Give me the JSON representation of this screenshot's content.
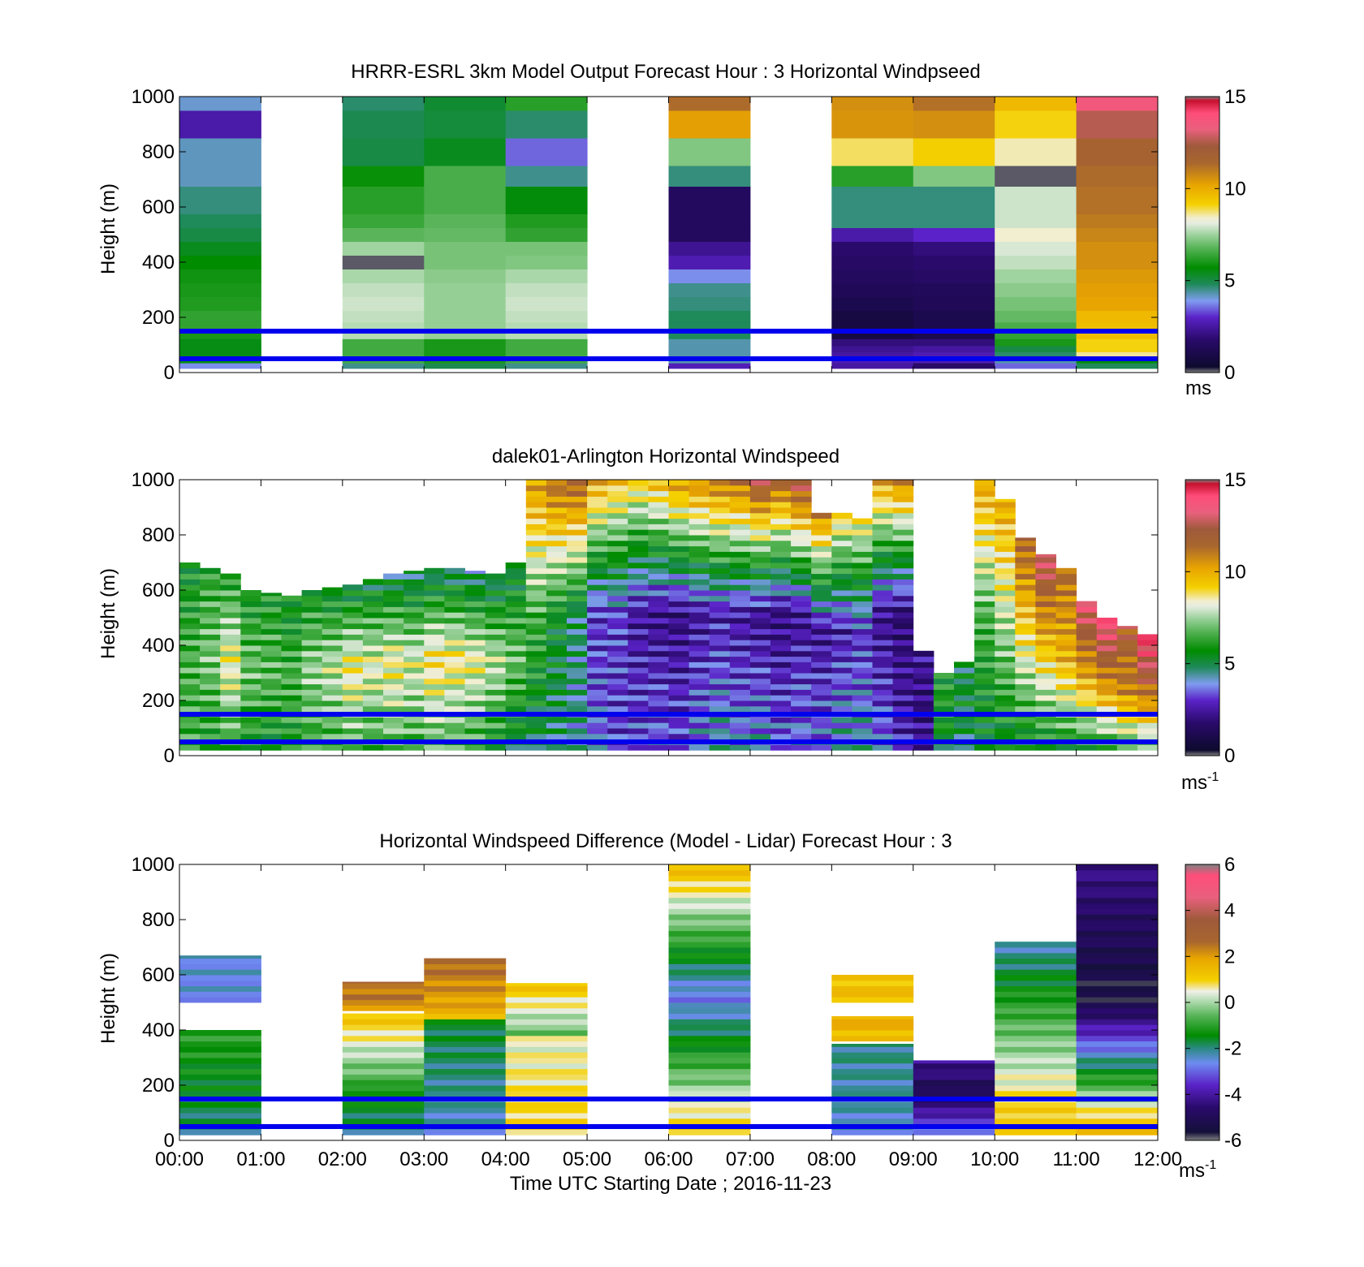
{
  "figure": {
    "xlabel": "Time UTC  Starting Date ; 2016-11-23",
    "x_tick_labels": [
      "00:00",
      "01:00",
      "02:00",
      "03:00",
      "04:00",
      "05:00",
      "06:00",
      "07:00",
      "08:00",
      "09:00",
      "10:00",
      "11:00",
      "12:00"
    ],
    "reference_lines_height_m": [
      150,
      50
    ],
    "reference_line_color": "#0000ee"
  },
  "colormaps": {
    "speed_stops": [
      [
        0.0,
        "#808080"
      ],
      [
        0.02,
        "#0d0a2e"
      ],
      [
        0.12,
        "#2a0a6b"
      ],
      [
        0.2,
        "#5a22c8"
      ],
      [
        0.26,
        "#7f9cf0"
      ],
      [
        0.32,
        "#1f8a5a"
      ],
      [
        0.38,
        "#008c00"
      ],
      [
        0.45,
        "#55b355"
      ],
      [
        0.5,
        "#9fd39f"
      ],
      [
        0.54,
        "#e4ecdf"
      ],
      [
        0.56,
        "#f2eed0"
      ],
      [
        0.61,
        "#f4d000"
      ],
      [
        0.68,
        "#e8a400"
      ],
      [
        0.76,
        "#a8662f"
      ],
      [
        0.82,
        "#9e5a3a"
      ],
      [
        0.88,
        "#e8607c"
      ],
      [
        0.94,
        "#ff4d7a"
      ],
      [
        0.985,
        "#c8102e"
      ],
      [
        1.0,
        "#808080"
      ]
    ],
    "diff_stops": [
      [
        0.0,
        "#808080"
      ],
      [
        0.03,
        "#14103a"
      ],
      [
        0.12,
        "#2a0a6b"
      ],
      [
        0.2,
        "#5a22c8"
      ],
      [
        0.28,
        "#6e8cf0"
      ],
      [
        0.33,
        "#2e8a8a"
      ],
      [
        0.38,
        "#008c00"
      ],
      [
        0.45,
        "#55b355"
      ],
      [
        0.5,
        "#a8d8a8"
      ],
      [
        0.54,
        "#f0f0e8"
      ],
      [
        0.58,
        "#f4d000"
      ],
      [
        0.66,
        "#e8a400"
      ],
      [
        0.72,
        "#a8662f"
      ],
      [
        0.8,
        "#9e5a3a"
      ],
      [
        0.88,
        "#e8607c"
      ],
      [
        0.96,
        "#ff4d7a"
      ],
      [
        1.0,
        "#808080"
      ]
    ]
  },
  "chart_data": [
    {
      "type": "heatmap",
      "title": "HRRR-ESRL 3km Model Output   Forecast Hour : 3 Horizontal Windpseed",
      "xlabel": "",
      "ylabel": "Height (m)",
      "xlim": [
        0,
        12
      ],
      "ylim": [
        0,
        1000
      ],
      "y_ticks": [
        0,
        200,
        400,
        600,
        800,
        1000
      ],
      "colorbar": {
        "range": [
          0,
          15
        ],
        "ticks": [
          0,
          5,
          10,
          15
        ],
        "unit": "ms",
        "unit_sup": "",
        "colormap": "speed"
      },
      "height_levels_m": [
        25,
        45,
        65,
        85,
        110,
        135,
        165,
        200,
        250,
        300,
        350,
        400,
        450,
        500,
        550,
        600,
        650,
        700,
        800,
        900,
        1000
      ],
      "columns": [
        {
          "time_h": [
            0,
            1
          ],
          "values": [
            3.8,
            5.5,
            5.5,
            5.5,
            5.5,
            6.0,
            6.3,
            6.3,
            6.1,
            6.0,
            5.9,
            5.7,
            5.4,
            5.0,
            4.8,
            4.6,
            4.6,
            4.2,
            4.2,
            2.6,
            4.1
          ]
        },
        null,
        {
          "time_h": [
            2,
            3
          ],
          "values": [
            4.5,
            6.5,
            6.5,
            6.5,
            6.5,
            7.7,
            7.7,
            7.8,
            7.9,
            7.8,
            7.6,
            0.1,
            7.5,
            6.8,
            6.4,
            6.2,
            6.2,
            5.8,
            5.0,
            4.9,
            4.7
          ]
        },
        {
          "time_h": [
            3,
            4
          ],
          "values": [
            4.9,
            6.0,
            6.0,
            6.0,
            6.0,
            7.4,
            7.4,
            7.4,
            7.4,
            7.4,
            7.3,
            7.1,
            7.1,
            6.9,
            6.8,
            6.6,
            6.6,
            6.6,
            5.4,
            5.1,
            5.2
          ]
        },
        {
          "time_h": [
            4,
            5
          ],
          "values": [
            4.5,
            6.5,
            6.5,
            6.5,
            6.5,
            7.7,
            7.7,
            7.8,
            7.9,
            7.8,
            7.6,
            7.2,
            7.1,
            6.3,
            6.1,
            5.6,
            5.6,
            4.5,
            3.5,
            4.7,
            6.2
          ]
        },
        null,
        {
          "time_h": [
            6,
            7
          ],
          "values": [
            2.8,
            4.3,
            4.3,
            4.3,
            4.3,
            4.8,
            4.8,
            4.8,
            4.6,
            4.5,
            3.8,
            2.7,
            2.3,
            1.5,
            1.5,
            1.5,
            1.5,
            4.6,
            7.2,
            10.3,
            11.3
          ]
        },
        null,
        {
          "time_h": [
            8,
            9
          ],
          "values": [
            2.5,
            2.7,
            2.5,
            2.3,
            2.0,
            0.8,
            0.8,
            0.8,
            1.1,
            1.3,
            1.5,
            1.6,
            1.8,
            2.6,
            4.6,
            4.6,
            4.6,
            6.2,
            8.8,
            10.5,
            10.6
          ]
        },
        {
          "time_h": [
            9,
            10
          ],
          "values": [
            1.7,
            2.7,
            2.7,
            2.5,
            2.0,
            1.1,
            1.1,
            1.1,
            1.3,
            1.4,
            1.6,
            1.8,
            2.0,
            3.0,
            4.6,
            4.6,
            4.6,
            7.2,
            9.2,
            10.6,
            11.2
          ]
        },
        {
          "time_h": [
            10,
            11
          ],
          "values": [
            3.5,
            4.3,
            4.7,
            5.0,
            6.0,
            6.3,
            6.6,
            6.9,
            7.1,
            7.3,
            7.5,
            7.8,
            8.0,
            8.4,
            7.9,
            7.9,
            7.9,
            0.1,
            8.5,
            9.1,
            9.7
          ]
        },
        {
          "time_h": [
            11,
            12
          ],
          "values": [
            4.8,
            5.6,
            8.6,
            9.1,
            9.1,
            9.6,
            9.6,
            9.7,
            10.2,
            10.3,
            10.4,
            10.6,
            10.6,
            10.8,
            11.0,
            11.2,
            11.2,
            11.3,
            11.6,
            12.6,
            13.6
          ]
        }
      ]
    },
    {
      "type": "heatmap",
      "title": "dalek01-Arlington  Horizontal Windspeed",
      "xlabel": "",
      "ylabel": "Height (m)",
      "xlim": [
        0,
        12
      ],
      "ylim": [
        0,
        1000
      ],
      "y_ticks": [
        0,
        200,
        400,
        600,
        800,
        1000
      ],
      "colorbar": {
        "range": [
          0,
          15
        ],
        "ticks": [
          0,
          5,
          10,
          15
        ],
        "unit": "ms",
        "unit_sup": "-1",
        "colormap": "speed"
      },
      "profile_breaks_h": [
        0,
        0.25,
        0.5,
        0.75,
        1,
        1.25,
        1.5,
        1.75,
        2,
        2.25,
        2.5,
        2.75,
        3,
        3.25,
        3.5,
        3.75,
        4,
        4.25,
        4.5,
        4.75,
        5,
        5.25,
        5.5,
        5.75,
        6,
        6.25,
        6.5,
        6.75,
        7,
        7.25,
        7.5,
        7.75,
        8,
        8.25,
        8.5,
        8.75,
        9,
        9.25,
        9.5,
        9.75,
        10,
        10.25,
        10.5,
        10.75,
        11,
        11.25,
        11.5,
        11.75,
        12
      ],
      "profiles": [
        {
          "top_m": 700,
          "bottom": 6.3,
          "mid": 6.6,
          "top": 5.6
        },
        {
          "top_m": 680,
          "bottom": 6.0,
          "mid": 7.1,
          "top": 6.2
        },
        {
          "top_m": 660,
          "bottom": 6.4,
          "mid": 8.4,
          "top": 5.9
        },
        {
          "top_m": 600,
          "bottom": 6.0,
          "mid": 7.0,
          "top": 5.7
        },
        {
          "top_m": 590,
          "bottom": 5.6,
          "mid": 6.8,
          "top": 5.9
        },
        {
          "top_m": 580,
          "bottom": 5.8,
          "mid": 6.6,
          "top": 5.5
        },
        {
          "top_m": 600,
          "bottom": 6.0,
          "mid": 7.4,
          "top": 5.7
        },
        {
          "top_m": 610,
          "bottom": 6.2,
          "mid": 7.8,
          "top": 5.3
        },
        {
          "top_m": 620,
          "bottom": 6.6,
          "mid": 8.6,
          "top": 5.0
        },
        {
          "top_m": 640,
          "bottom": 6.4,
          "mid": 8.2,
          "top": 4.9
        },
        {
          "top_m": 660,
          "bottom": 6.8,
          "mid": 8.5,
          "top": 4.6
        },
        {
          "top_m": 670,
          "bottom": 6.4,
          "mid": 8.1,
          "top": 4.5
        },
        {
          "top_m": 680,
          "bottom": 6.6,
          "mid": 8.9,
          "top": 4.4
        },
        {
          "top_m": 680,
          "bottom": 6.3,
          "mid": 8.7,
          "top": 4.5
        },
        {
          "top_m": 670,
          "bottom": 6.1,
          "mid": 8.4,
          "top": 4.4
        },
        {
          "top_m": 660,
          "bottom": 5.6,
          "mid": 7.8,
          "top": 4.6
        },
        {
          "top_m": 700,
          "bottom": 5.2,
          "mid": 7.0,
          "top": 5.0
        },
        {
          "top_m": 1000,
          "bottom": 5.0,
          "mid": 6.5,
          "top": 10.5
        },
        {
          "top_m": 1000,
          "bottom": 4.6,
          "mid": 5.6,
          "top": 11.5
        },
        {
          "top_m": 1000,
          "bottom": 4.2,
          "mid": 4.8,
          "top": 11.9
        },
        {
          "top_m": 1000,
          "bottom": 3.6,
          "mid": 3.0,
          "top": 10.2
        },
        {
          "top_m": 1000,
          "bottom": 3.0,
          "mid": 3.2,
          "top": 9.6
        },
        {
          "top_m": 1000,
          "bottom": 3.4,
          "mid": 2.4,
          "top": 9.2
        },
        {
          "top_m": 1000,
          "bottom": 3.8,
          "mid": 2.1,
          "top": 9.8
        },
        {
          "top_m": 1000,
          "bottom": 3.5,
          "mid": 2.0,
          "top": 10.6
        },
        {
          "top_m": 1000,
          "bottom": 4.0,
          "mid": 2.4,
          "top": 10.9
        },
        {
          "top_m": 1000,
          "bottom": 4.3,
          "mid": 2.7,
          "top": 11.2
        },
        {
          "top_m": 1000,
          "bottom": 3.9,
          "mid": 2.5,
          "top": 11.5
        },
        {
          "top_m": 1000,
          "bottom": 4.2,
          "mid": 2.2,
          "top": 12.6
        },
        {
          "top_m": 1000,
          "bottom": 3.7,
          "mid": 2.0,
          "top": 11.8
        },
        {
          "top_m": 1000,
          "bottom": 4.1,
          "mid": 2.2,
          "top": 12.9
        },
        {
          "top_m": 880,
          "bottom": 3.9,
          "mid": 2.3,
          "top": 11.0
        },
        {
          "top_m": 880,
          "bottom": 4.5,
          "mid": 2.6,
          "top": 9.2
        },
        {
          "top_m": 860,
          "bottom": 4.3,
          "mid": 3.0,
          "top": 8.8
        },
        {
          "top_m": 1000,
          "bottom": 3.6,
          "mid": 2.2,
          "top": 10.3
        },
        {
          "top_m": 1000,
          "bottom": 2.8,
          "mid": 1.8,
          "top": 10.9
        },
        {
          "top_m": 380,
          "bottom": 2.5,
          "mid": 2.0,
          "top": 2.4
        },
        {
          "top_m": 300,
          "bottom": 5.4,
          "mid": 6.1,
          "top": 5.8
        },
        {
          "top_m": 340,
          "bottom": 4.8,
          "mid": 5.3,
          "top": 5.0
        },
        {
          "top_m": 1000,
          "bottom": 5.2,
          "mid": 6.6,
          "top": 10.2
        },
        {
          "top_m": 930,
          "bottom": 5.1,
          "mid": 7.6,
          "top": 10.1
        },
        {
          "top_m": 790,
          "bottom": 5.0,
          "mid": 8.6,
          "top": 11.8
        },
        {
          "top_m": 730,
          "bottom": 5.3,
          "mid": 9.3,
          "top": 13.2
        },
        {
          "top_m": 680,
          "bottom": 5.5,
          "mid": 9.8,
          "top": 11.4
        },
        {
          "top_m": 560,
          "bottom": 5.8,
          "mid": 10.1,
          "top": 13.6
        },
        {
          "top_m": 500,
          "bottom": 6.0,
          "mid": 10.6,
          "top": 14.2
        },
        {
          "top_m": 470,
          "bottom": 6.2,
          "mid": 10.9,
          "top": 12.1
        },
        {
          "top_m": 440,
          "bottom": 6.3,
          "mid": 11.2,
          "top": 14.6
        }
      ]
    },
    {
      "type": "heatmap",
      "title": "Horizontal Windspeed Difference (Model - Lidar) Forecast Hour : 3",
      "xlabel": "Time UTC  Starting Date ; 2016-11-23",
      "ylabel": "Height (m)",
      "xlim": [
        0,
        12
      ],
      "ylim": [
        0,
        1000
      ],
      "y_ticks": [
        0,
        200,
        400,
        600,
        800,
        1000
      ],
      "colorbar": {
        "range": [
          -6,
          6
        ],
        "ticks": [
          -6,
          -4,
          -2,
          0,
          2,
          4,
          6
        ],
        "unit": "ms",
        "unit_sup": "-1",
        "colormap": "diff"
      },
      "columns": [
        {
          "time_h": [
            0,
            1
          ],
          "segments": [
            {
              "from_m": 20,
              "to_m": 400,
              "bottom": -2.0,
              "top": -1.0
            },
            {
              "from_m": 500,
              "to_m": 670,
              "bottom": -2.6,
              "top": -2.5
            }
          ]
        },
        null,
        {
          "time_h": [
            2,
            3
          ],
          "segments": [
            {
              "from_m": 20,
              "to_m": 200,
              "bottom": -2.0,
              "top": -1.2
            },
            {
              "from_m": 200,
              "to_m": 460,
              "bottom": -0.8,
              "top": 1.4
            },
            {
              "from_m": 470,
              "to_m": 575,
              "bottom": 2.2,
              "top": 2.6
            }
          ]
        },
        {
          "time_h": [
            3,
            4
          ],
          "segments": [
            {
              "from_m": 20,
              "to_m": 440,
              "bottom": -2.4,
              "top": -1.6
            },
            {
              "from_m": 440,
              "to_m": 660,
              "bottom": 1.6,
              "top": 2.8
            }
          ]
        },
        {
          "time_h": [
            4,
            5
          ],
          "segments": [
            {
              "from_m": 20,
              "to_m": 380,
              "bottom": 1.0,
              "top": 0.4
            },
            {
              "from_m": 380,
              "to_m": 570,
              "bottom": -0.4,
              "top": 1.4
            }
          ]
        },
        null,
        {
          "time_h": [
            6,
            7
          ],
          "segments": [
            {
              "from_m": 20,
              "to_m": 1000,
              "bottom": 1.2,
              "top": 1.6,
              "mid": -2.8
            }
          ]
        },
        null,
        {
          "time_h": [
            8,
            9
          ],
          "segments": [
            {
              "from_m": 20,
              "to_m": 350,
              "bottom": -2.4,
              "top": -2.0
            },
            {
              "from_m": 360,
              "to_m": 450,
              "bottom": 1.4,
              "top": 1.8
            },
            {
              "from_m": 500,
              "to_m": 600,
              "bottom": 1.4,
              "top": 1.2
            }
          ]
        },
        {
          "time_h": [
            9,
            10
          ],
          "segments": [
            {
              "from_m": 20,
              "to_m": 290,
              "bottom": -2.6,
              "top": -4.0,
              "mid": -5.2
            }
          ]
        },
        {
          "time_h": [
            10,
            11
          ],
          "segments": [
            {
              "from_m": 20,
              "to_m": 720,
              "bottom": 1.4,
              "top": -2.4,
              "mid": -0.4
            }
          ]
        },
        {
          "time_h": [
            11,
            12
          ],
          "segments": [
            {
              "from_m": 20,
              "to_m": 1000,
              "bottom": 1.8,
              "top": -4.2,
              "mid": -5.6
            }
          ]
        }
      ]
    }
  ]
}
